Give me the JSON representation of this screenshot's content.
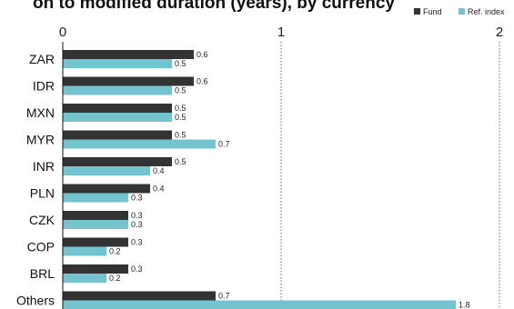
{
  "chart_data": {
    "type": "bar",
    "orientation": "horizontal",
    "title": "on to modified duration (years), by currency",
    "categories": [
      "ZAR",
      "IDR",
      "MXN",
      "MYR",
      "INR",
      "PLN",
      "CZK",
      "COP",
      "BRL",
      "Others"
    ],
    "series": [
      {
        "name": "Fund",
        "color": "#333333",
        "values": [
          0.6,
          0.6,
          0.5,
          0.5,
          0.5,
          0.4,
          0.3,
          0.3,
          0.3,
          0.7
        ]
      },
      {
        "name": "Ref. index",
        "color": "#74c4d0",
        "values": [
          0.5,
          0.5,
          0.5,
          0.7,
          0.4,
          0.3,
          0.3,
          0.2,
          0.2,
          1.8
        ]
      }
    ],
    "xlim": [
      0,
      2
    ],
    "xticks": [
      "0",
      "1",
      "2"
    ],
    "grid": "dotted vertical at 1 and 2",
    "legend_position": "top-right"
  }
}
